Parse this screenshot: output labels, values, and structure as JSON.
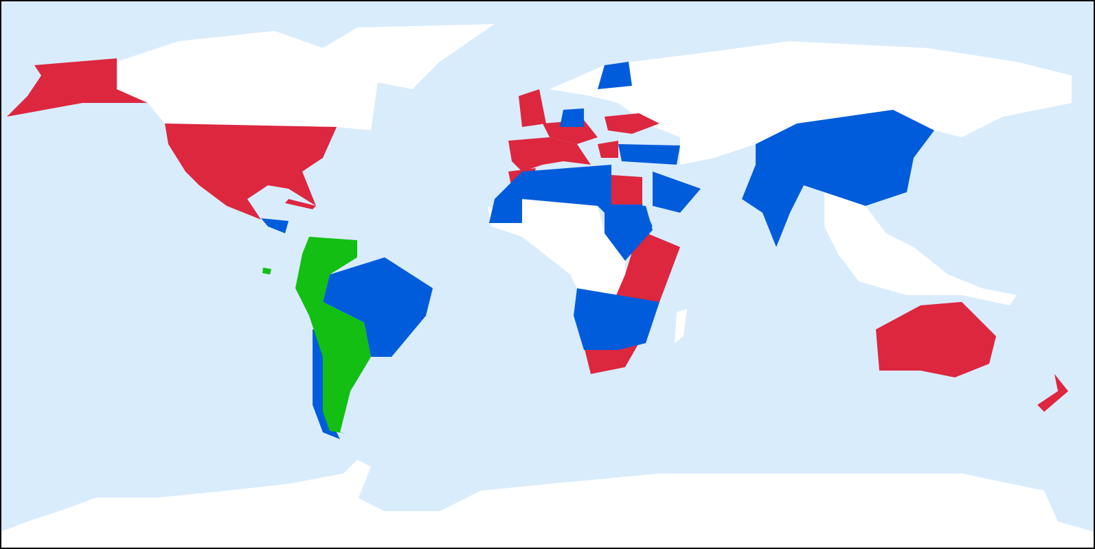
{
  "map": {
    "projection": "equirectangular",
    "colors": {
      "ocean": "#d9ecfc",
      "land_unassigned": "#ffffff",
      "group_red": "#dc273f",
      "group_blue": "#005cdb",
      "group_green": "#12bf12",
      "frame": "#000000"
    }
  }
}
